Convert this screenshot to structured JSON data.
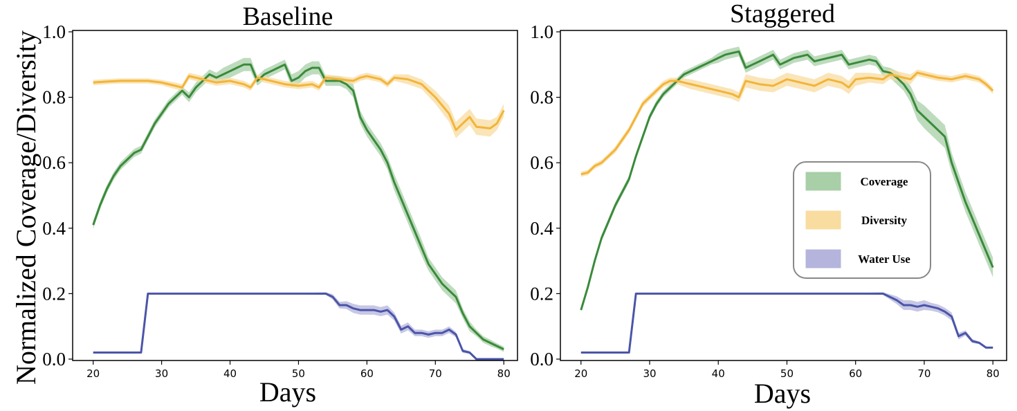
{
  "ylabel": "Normalized Coverage/Diversity",
  "colors": {
    "coverage": "#3a8a3a",
    "coverage_band": "#a8cfa8",
    "diversity": "#f2b43a",
    "diversity_band": "#f8dca0",
    "water": "#4a55a8",
    "water_band": "#b4b4dc"
  },
  "legend": {
    "items": [
      {
        "label": "Coverage",
        "color_key": "coverage_band"
      },
      {
        "label": "Diversity",
        "color_key": "diversity_band"
      },
      {
        "label": "Water Use",
        "color_key": "water_band"
      }
    ]
  },
  "chart_data": [
    {
      "type": "line",
      "title": "Baseline",
      "xlabel": "Days",
      "ylabel": "Normalized Coverage/Diversity",
      "xlim": [
        17,
        82
      ],
      "ylim": [
        0,
        1
      ],
      "xticks": [
        20,
        30,
        40,
        50,
        60,
        70,
        80
      ],
      "yticks": [
        "0.0",
        "0.2",
        "0.4",
        "0.6",
        "0.8",
        "1.0"
      ],
      "series": [
        {
          "name": "Coverage",
          "color_key": "coverage",
          "band_key": "coverage_band",
          "x": [
            20,
            21,
            22,
            23,
            24,
            25,
            26,
            27,
            28,
            29,
            30,
            31,
            32,
            33,
            34,
            35,
            36,
            37,
            38,
            39,
            40,
            41,
            42,
            43,
            44,
            45,
            46,
            47,
            48,
            49,
            50,
            51,
            52,
            53,
            54,
            55,
            56,
            57,
            58,
            59,
            60,
            61,
            62,
            63,
            64,
            65,
            66,
            67,
            68,
            69,
            70,
            71,
            72,
            73,
            74,
            75,
            76,
            77,
            78,
            79,
            80
          ],
          "y": [
            0.41,
            0.47,
            0.52,
            0.56,
            0.59,
            0.61,
            0.63,
            0.64,
            0.68,
            0.72,
            0.75,
            0.78,
            0.8,
            0.82,
            0.8,
            0.83,
            0.85,
            0.87,
            0.86,
            0.87,
            0.88,
            0.89,
            0.9,
            0.9,
            0.85,
            0.87,
            0.88,
            0.89,
            0.9,
            0.85,
            0.86,
            0.88,
            0.89,
            0.89,
            0.85,
            0.85,
            0.85,
            0.84,
            0.82,
            0.74,
            0.7,
            0.67,
            0.64,
            0.6,
            0.54,
            0.49,
            0.44,
            0.39,
            0.34,
            0.29,
            0.26,
            0.23,
            0.21,
            0.19,
            0.14,
            0.1,
            0.08,
            0.06,
            0.05,
            0.04,
            0.03
          ],
          "err": [
            0.012,
            0.012,
            0.012,
            0.012,
            0.012,
            0.012,
            0.012,
            0.012,
            0.012,
            0.012,
            0.012,
            0.012,
            0.012,
            0.012,
            0.015,
            0.015,
            0.015,
            0.015,
            0.015,
            0.02,
            0.02,
            0.02,
            0.02,
            0.02,
            0.015,
            0.015,
            0.015,
            0.015,
            0.015,
            0.02,
            0.02,
            0.02,
            0.02,
            0.02,
            0.015,
            0.015,
            0.015,
            0.015,
            0.02,
            0.02,
            0.02,
            0.02,
            0.02,
            0.02,
            0.025,
            0.025,
            0.025,
            0.025,
            0.025,
            0.02,
            0.02,
            0.02,
            0.02,
            0.02,
            0.015,
            0.015,
            0.01,
            0.01,
            0.01,
            0.008,
            0.008
          ]
        },
        {
          "name": "Diversity",
          "color_key": "diversity",
          "band_key": "diversity_band",
          "x": [
            20,
            22,
            24,
            26,
            28,
            30,
            32,
            33,
            34,
            36,
            38,
            40,
            42,
            43,
            44,
            46,
            48,
            50,
            52,
            53,
            54,
            56,
            58,
            59,
            60,
            62,
            63,
            64,
            66,
            68,
            70,
            72,
            73,
            74,
            75,
            76,
            78,
            79,
            80
          ],
          "y": [
            0.845,
            0.848,
            0.85,
            0.85,
            0.85,
            0.845,
            0.835,
            0.83,
            0.865,
            0.855,
            0.845,
            0.85,
            0.84,
            0.83,
            0.86,
            0.85,
            0.84,
            0.835,
            0.84,
            0.83,
            0.86,
            0.855,
            0.85,
            0.86,
            0.865,
            0.855,
            0.84,
            0.86,
            0.855,
            0.84,
            0.8,
            0.75,
            0.7,
            0.72,
            0.74,
            0.71,
            0.705,
            0.72,
            0.76
          ],
          "err": [
            0.008,
            0.008,
            0.008,
            0.008,
            0.008,
            0.008,
            0.01,
            0.01,
            0.01,
            0.01,
            0.01,
            0.01,
            0.01,
            0.01,
            0.01,
            0.01,
            0.01,
            0.01,
            0.01,
            0.01,
            0.01,
            0.01,
            0.01,
            0.01,
            0.01,
            0.01,
            0.01,
            0.01,
            0.015,
            0.015,
            0.02,
            0.025,
            0.025,
            0.025,
            0.025,
            0.025,
            0.025,
            0.02,
            0.02
          ]
        },
        {
          "name": "Water Use",
          "color_key": "water",
          "band_key": "water_band",
          "x": [
            20,
            22,
            24,
            26,
            27,
            28,
            30,
            35,
            40,
            45,
            50,
            54,
            55,
            56,
            57,
            58,
            59,
            60,
            61,
            62,
            63,
            64,
            65,
            66,
            67,
            68,
            69,
            70,
            71,
            72,
            73,
            74,
            75,
            76,
            77,
            78,
            79,
            80
          ],
          "y": [
            0.02,
            0.02,
            0.02,
            0.02,
            0.02,
            0.2,
            0.2,
            0.2,
            0.2,
            0.2,
            0.2,
            0.2,
            0.19,
            0.165,
            0.165,
            0.155,
            0.15,
            0.15,
            0.15,
            0.145,
            0.15,
            0.13,
            0.09,
            0.1,
            0.08,
            0.08,
            0.075,
            0.08,
            0.08,
            0.09,
            0.075,
            0.025,
            0.02,
            0.0,
            0.0,
            0.0,
            0.0,
            0.0
          ],
          "err": [
            0.002,
            0.002,
            0.002,
            0.002,
            0.002,
            0.002,
            0.002,
            0.002,
            0.002,
            0.002,
            0.002,
            0.004,
            0.008,
            0.01,
            0.012,
            0.014,
            0.014,
            0.014,
            0.014,
            0.014,
            0.014,
            0.012,
            0.012,
            0.012,
            0.01,
            0.01,
            0.01,
            0.01,
            0.01,
            0.01,
            0.008,
            0.006,
            0.004,
            0.002,
            0.002,
            0.002,
            0.002,
            0.002
          ]
        }
      ]
    },
    {
      "type": "line",
      "title": "Staggered",
      "xlabel": "Days",
      "ylabel": "",
      "xlim": [
        17,
        82
      ],
      "ylim": [
        0,
        1
      ],
      "xticks": [
        20,
        30,
        40,
        50,
        60,
        70,
        80
      ],
      "yticks": [
        "0.0",
        "0.2",
        "0.4",
        "0.6",
        "0.8",
        "1.0"
      ],
      "series": [
        {
          "name": "Coverage",
          "color_key": "coverage",
          "band_key": "coverage_band",
          "x": [
            20,
            21,
            22,
            23,
            24,
            25,
            26,
            27,
            28,
            29,
            30,
            31,
            32,
            33,
            34,
            35,
            36,
            37,
            38,
            39,
            40,
            41,
            42,
            43,
            44,
            45,
            46,
            47,
            48,
            49,
            50,
            51,
            52,
            53,
            54,
            55,
            56,
            57,
            58,
            59,
            60,
            61,
            62,
            63,
            64,
            65,
            66,
            67,
            68,
            69,
            70,
            71,
            72,
            73,
            74,
            75,
            76,
            77,
            78,
            79,
            80
          ],
          "y": [
            0.15,
            0.22,
            0.3,
            0.37,
            0.42,
            0.47,
            0.51,
            0.55,
            0.62,
            0.68,
            0.74,
            0.78,
            0.81,
            0.83,
            0.85,
            0.87,
            0.88,
            0.89,
            0.9,
            0.91,
            0.92,
            0.93,
            0.935,
            0.94,
            0.89,
            0.9,
            0.91,
            0.92,
            0.93,
            0.9,
            0.91,
            0.92,
            0.925,
            0.93,
            0.91,
            0.915,
            0.92,
            0.925,
            0.93,
            0.9,
            0.905,
            0.91,
            0.915,
            0.91,
            0.88,
            0.875,
            0.86,
            0.84,
            0.81,
            0.76,
            0.74,
            0.72,
            0.7,
            0.68,
            0.6,
            0.54,
            0.48,
            0.43,
            0.38,
            0.33,
            0.28
          ],
          "err": [
            0.005,
            0.008,
            0.01,
            0.01,
            0.01,
            0.01,
            0.01,
            0.01,
            0.01,
            0.01,
            0.01,
            0.01,
            0.01,
            0.01,
            0.01,
            0.01,
            0.01,
            0.01,
            0.01,
            0.01,
            0.015,
            0.015,
            0.015,
            0.015,
            0.015,
            0.015,
            0.015,
            0.015,
            0.015,
            0.015,
            0.015,
            0.015,
            0.015,
            0.015,
            0.015,
            0.015,
            0.015,
            0.015,
            0.015,
            0.015,
            0.015,
            0.015,
            0.015,
            0.015,
            0.015,
            0.015,
            0.02,
            0.02,
            0.025,
            0.03,
            0.035,
            0.035,
            0.035,
            0.035,
            0.03,
            0.03,
            0.03,
            0.03,
            0.03,
            0.03,
            0.03
          ]
        },
        {
          "name": "Diversity",
          "color_key": "diversity",
          "band_key": "diversity_band",
          "x": [
            20,
            21,
            22,
            23,
            24,
            25,
            26,
            27,
            28,
            29,
            30,
            31,
            32,
            33,
            34,
            36,
            38,
            40,
            42,
            43,
            44,
            46,
            48,
            50,
            52,
            54,
            56,
            58,
            59,
            60,
            62,
            64,
            65,
            66,
            68,
            69,
            70,
            72,
            74,
            76,
            78,
            79,
            80
          ],
          "y": [
            0.565,
            0.57,
            0.59,
            0.6,
            0.62,
            0.64,
            0.67,
            0.7,
            0.74,
            0.78,
            0.8,
            0.82,
            0.84,
            0.85,
            0.85,
            0.84,
            0.83,
            0.82,
            0.81,
            0.8,
            0.85,
            0.84,
            0.835,
            0.855,
            0.845,
            0.835,
            0.855,
            0.845,
            0.83,
            0.855,
            0.86,
            0.855,
            0.87,
            0.865,
            0.855,
            0.875,
            0.87,
            0.86,
            0.855,
            0.865,
            0.855,
            0.84,
            0.82
          ],
          "err": [
            0.008,
            0.008,
            0.008,
            0.008,
            0.008,
            0.01,
            0.01,
            0.01,
            0.01,
            0.01,
            0.01,
            0.01,
            0.01,
            0.01,
            0.01,
            0.015,
            0.015,
            0.015,
            0.015,
            0.015,
            0.02,
            0.02,
            0.02,
            0.02,
            0.02,
            0.02,
            0.02,
            0.02,
            0.02,
            0.02,
            0.015,
            0.015,
            0.015,
            0.015,
            0.015,
            0.01,
            0.01,
            0.01,
            0.01,
            0.01,
            0.01,
            0.01,
            0.01
          ]
        },
        {
          "name": "Water Use",
          "color_key": "water",
          "band_key": "water_band",
          "x": [
            20,
            22,
            24,
            26,
            27,
            28,
            30,
            35,
            40,
            45,
            50,
            55,
            60,
            64,
            65,
            66,
            67,
            68,
            69,
            70,
            71,
            72,
            73,
            74,
            75,
            76,
            77,
            78,
            79,
            80
          ],
          "y": [
            0.02,
            0.02,
            0.02,
            0.02,
            0.02,
            0.2,
            0.2,
            0.2,
            0.2,
            0.2,
            0.2,
            0.2,
            0.2,
            0.2,
            0.19,
            0.18,
            0.165,
            0.165,
            0.16,
            0.165,
            0.16,
            0.155,
            0.145,
            0.13,
            0.07,
            0.08,
            0.055,
            0.05,
            0.035,
            0.035
          ],
          "err": [
            0.002,
            0.002,
            0.002,
            0.002,
            0.002,
            0.002,
            0.002,
            0.002,
            0.002,
            0.002,
            0.002,
            0.002,
            0.002,
            0.004,
            0.008,
            0.012,
            0.015,
            0.015,
            0.015,
            0.015,
            0.012,
            0.012,
            0.012,
            0.012,
            0.01,
            0.008,
            0.006,
            0.004,
            0.003,
            0.003
          ]
        }
      ]
    }
  ]
}
